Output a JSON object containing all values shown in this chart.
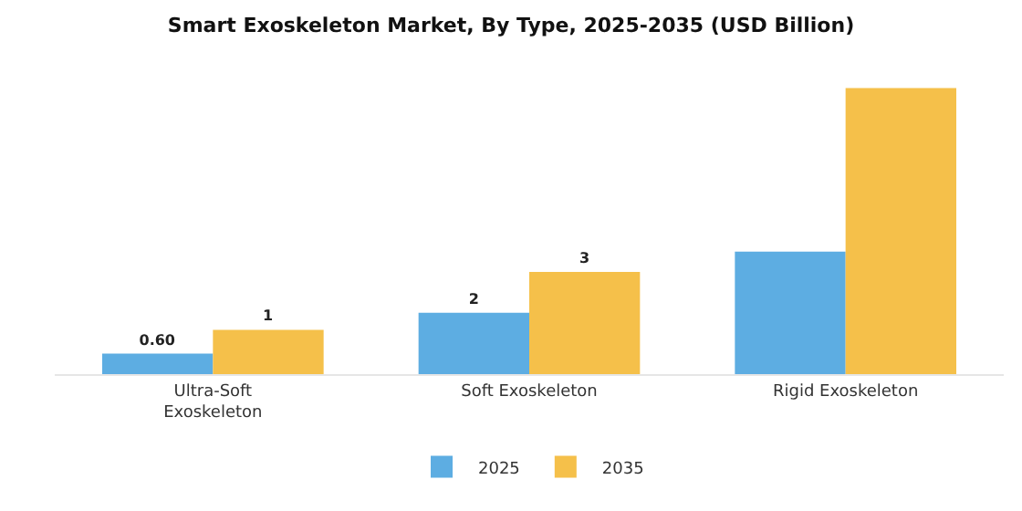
{
  "chart_data": {
    "type": "bar",
    "title": "Smart Exoskeleton Market, By Type, 2025-2035 (USD Billion)",
    "categories": [
      "Ultra-Soft\nExoskeleton",
      "Soft Exoskeleton",
      "Rigid Exoskeleton"
    ],
    "series": [
      {
        "name": "2025",
        "color": "#5dade2",
        "values": [
          0.6,
          1.8,
          3.6
        ],
        "value_labels": [
          "0.60",
          "2",
          null
        ]
      },
      {
        "name": "2035",
        "color": "#f5c04a",
        "values": [
          1.3,
          3.0,
          8.4
        ],
        "value_labels": [
          "1",
          "3",
          null
        ]
      }
    ],
    "legend": "bottom",
    "tick_labels": "x"
  }
}
